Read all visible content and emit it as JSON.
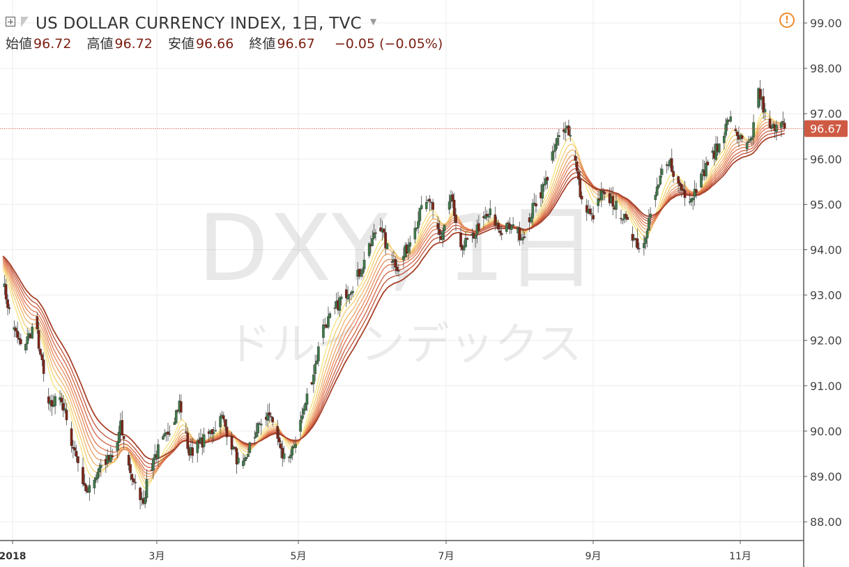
{
  "header": {
    "title": "US DOLLAR CURRENCY INDEX, 1日, TVC",
    "ohlc": [
      {
        "label": "始値",
        "value": "96.72"
      },
      {
        "label": "高値",
        "value": "96.72"
      },
      {
        "label": "安値",
        "value": "96.66"
      },
      {
        "label": "終値",
        "value": "96.67"
      }
    ],
    "change": "−0.05 (−0.05%)"
  },
  "watermark": {
    "symbol": "DXY, 1日",
    "name": "ドルインデックス"
  },
  "price_badge": "96.67",
  "colors": {
    "up": "#3f7a4a",
    "down": "#7d2416",
    "price_line": "#e05a4a",
    "ribbon": [
      "#f7e27a",
      "#f2cc70",
      "#efb46a",
      "#eb9f65",
      "#e78a5c",
      "#de7550",
      "#cf6344",
      "#bc5036",
      "#a8402a"
    ]
  },
  "chart_data": {
    "type": "candlestick",
    "x_axis": {
      "ticks": [
        {
          "label": "2018",
          "bold": true
        },
        {
          "label": "3月"
        },
        {
          "label": "5月"
        },
        {
          "label": "7月"
        },
        {
          "label": "9月"
        },
        {
          "label": "11月"
        }
      ]
    },
    "y_axis": {
      "range": [
        87.6,
        99.4
      ],
      "ticks": [
        "99.00",
        "98.00",
        "97.00",
        "96.00",
        "95.00",
        "94.00",
        "93.00",
        "92.00",
        "91.00",
        "90.00",
        "89.00",
        "88.00"
      ]
    },
    "last_price": 96.67,
    "ribbon_note": "9 moving averages",
    "close_path": [
      [
        0,
        93.3
      ],
      [
        6,
        92.3
      ],
      [
        12,
        91.8
      ],
      [
        20,
        92.4
      ],
      [
        28,
        90.5
      ],
      [
        35,
        90.8
      ],
      [
        42,
        89.8
      ],
      [
        52,
        88.6
      ],
      [
        60,
        89.3
      ],
      [
        68,
        89.4
      ],
      [
        72,
        90.1
      ],
      [
        80,
        88.8
      ],
      [
        86,
        88.5
      ],
      [
        92,
        89.4
      ],
      [
        100,
        89.9
      ],
      [
        108,
        90.6
      ],
      [
        114,
        89.5
      ],
      [
        120,
        89.7
      ],
      [
        128,
        90.0
      ],
      [
        134,
        90.3
      ],
      [
        140,
        89.7
      ],
      [
        146,
        89.1
      ],
      [
        152,
        89.8
      ],
      [
        158,
        90.2
      ],
      [
        164,
        90.4
      ],
      [
        170,
        89.5
      ],
      [
        176,
        89.4
      ],
      [
        182,
        90.2
      ],
      [
        190,
        91.3
      ],
      [
        196,
        92.3
      ],
      [
        202,
        92.6
      ],
      [
        208,
        93.0
      ],
      [
        214,
        93.2
      ],
      [
        222,
        93.8
      ],
      [
        230,
        94.6
      ],
      [
        236,
        93.9
      ],
      [
        242,
        93.6
      ],
      [
        250,
        94.3
      ],
      [
        256,
        94.9
      ],
      [
        262,
        95.0
      ],
      [
        268,
        94.2
      ],
      [
        274,
        95.1
      ],
      [
        280,
        94.1
      ],
      [
        286,
        94.2
      ],
      [
        292,
        94.6
      ],
      [
        298,
        94.8
      ],
      [
        304,
        94.4
      ],
      [
        310,
        94.5
      ],
      [
        318,
        94.3
      ],
      [
        324,
        94.9
      ],
      [
        332,
        95.5
      ],
      [
        338,
        96.3
      ],
      [
        344,
        96.8
      ],
      [
        348,
        96.4
      ],
      [
        354,
        95.0
      ],
      [
        360,
        94.7
      ],
      [
        366,
        95.2
      ],
      [
        372,
        95.1
      ],
      [
        378,
        94.8
      ],
      [
        384,
        94.4
      ],
      [
        390,
        94.0
      ],
      [
        396,
        94.8
      ],
      [
        402,
        95.6
      ],
      [
        408,
        95.9
      ],
      [
        414,
        95.4
      ],
      [
        420,
        95.1
      ],
      [
        426,
        95.5
      ],
      [
        432,
        96.0
      ],
      [
        438,
        96.3
      ],
      [
        444,
        96.9
      ],
      [
        450,
        96.5
      ],
      [
        454,
        96.2
      ],
      [
        458,
        96.4
      ],
      [
        462,
        97.5
      ],
      [
        466,
        97.0
      ],
      [
        470,
        96.6
      ],
      [
        474,
        96.9
      ],
      [
        478,
        96.67
      ]
    ]
  }
}
